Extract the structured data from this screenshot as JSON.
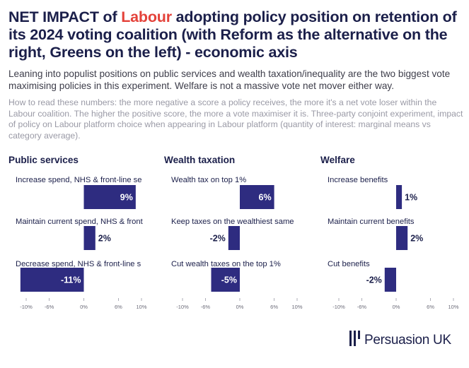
{
  "header": {
    "title_pre": "NET IMPACT of ",
    "title_accent": "Labour",
    "title_post": " adopting policy position on retention of its 2024 voting coalition (with Reform as the alternative on the right, Greens on the left) - economic axis",
    "subtitle": "Leaning into populist positions on public services and wealth taxation/inequality are the two biggest vote maximising policies in this experiment. Welfare is not a massive vote net mover either way.",
    "how_to_read": "How to read these numbers: the more negative a score a policy receives, the more it's a net vote loser within the Labour coalition. The higher the positive score, the more a vote maximiser it is. Three-party conjoint experiment, impact of policy on Labour platform choice when appearing in Labour platform (quantity of interest: marginal means vs category average).",
    "accent_color": "#e4423a",
    "title_color": "#1b1f4a"
  },
  "logo": {
    "text": "Persuasion UK",
    "icon": "persuasion-bars-icon"
  },
  "chart_data": [
    {
      "type": "bar",
      "orientation": "horizontal",
      "title": "Public services",
      "categories": [
        "Increase spend, NHS & front-line se",
        "Maintain current spend, NHS & front",
        "Decrease spend, NHS & front-line s"
      ],
      "values": [
        9,
        2,
        -11
      ],
      "data_labels": [
        "9%",
        "2%",
        "-11%"
      ],
      "xlim": [
        -10,
        10
      ],
      "xticks": [
        -10,
        -6,
        0,
        6,
        10
      ],
      "xtick_labels": [
        "-10%",
        "-6%",
        "0%",
        "6%",
        "10%"
      ],
      "bar_color": "#2e2c80"
    },
    {
      "type": "bar",
      "orientation": "horizontal",
      "title": "Wealth taxation",
      "categories": [
        "Wealth tax on top 1%",
        "Keep taxes on the wealthiest same",
        "Cut wealth taxes on the top 1%"
      ],
      "values": [
        6,
        -2,
        -5
      ],
      "data_labels": [
        "6%",
        "-2%",
        "-5%"
      ],
      "xlim": [
        -10,
        10
      ],
      "xticks": [
        -10,
        -6,
        0,
        6,
        10
      ],
      "xtick_labels": [
        "-10%",
        "-6%",
        "0%",
        "6%",
        "10%"
      ],
      "bar_color": "#2e2c80"
    },
    {
      "type": "bar",
      "orientation": "horizontal",
      "title": "Welfare",
      "categories": [
        "Increase benefits",
        "Maintain current benefits",
        "Cut benefits"
      ],
      "values": [
        1,
        2,
        -2
      ],
      "data_labels": [
        "1%",
        "2%",
        "-2%"
      ],
      "xlim": [
        -10,
        10
      ],
      "xticks": [
        -10,
        -6,
        0,
        6,
        10
      ],
      "xtick_labels": [
        "-10%",
        "-6%",
        "0%",
        "6%",
        "10%"
      ],
      "bar_color": "#2e2c80"
    }
  ]
}
